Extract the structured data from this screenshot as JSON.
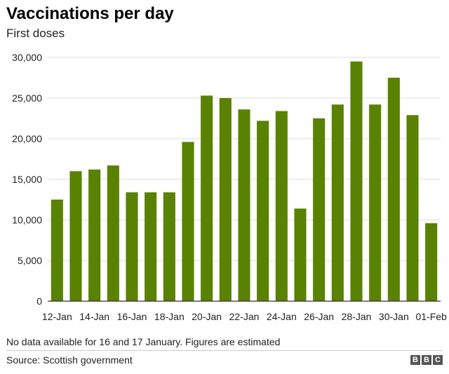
{
  "header": {
    "title": "Vaccinations per day",
    "subtitle": "First doses"
  },
  "footer": {
    "note": "No data available for 16 and 17 January. Figures are estimated",
    "source": "Source: Scottish government",
    "logo_letters": [
      "B",
      "B",
      "C"
    ]
  },
  "colors": {
    "bar": "#588200",
    "grid": "#dddddd",
    "axis": "#333333"
  },
  "chart_data": {
    "type": "bar",
    "title": "Vaccinations per day",
    "subtitle": "First doses",
    "categories": [
      "12-Jan",
      "13-Jan",
      "14-Jan",
      "15-Jan",
      "16-Jan",
      "17-Jan",
      "18-Jan",
      "19-Jan",
      "20-Jan",
      "21-Jan",
      "22-Jan",
      "23-Jan",
      "24-Jan",
      "25-Jan",
      "26-Jan",
      "27-Jan",
      "28-Jan",
      "29-Jan",
      "30-Jan",
      "31-Jan",
      "01-Feb"
    ],
    "x_tick_labels": [
      "12-Jan",
      "14-Jan",
      "16-Jan",
      "18-Jan",
      "20-Jan",
      "22-Jan",
      "24-Jan",
      "26-Jan",
      "28-Jan",
      "30-Jan",
      "01-Feb"
    ],
    "values": [
      12500,
      16000,
      16200,
      16700,
      13400,
      13400,
      13400,
      19600,
      25300,
      25000,
      23600,
      22200,
      23400,
      11400,
      22500,
      24200,
      29500,
      24200,
      27500,
      22900,
      9600
    ],
    "ylim": [
      0,
      30000
    ],
    "y_ticks": [
      0,
      5000,
      10000,
      15000,
      20000,
      25000,
      30000
    ],
    "y_tick_labels": [
      "0",
      "5,000",
      "10,000",
      "15,000",
      "20,000",
      "25,000",
      "30,000"
    ],
    "grid": true,
    "legend": "none"
  }
}
